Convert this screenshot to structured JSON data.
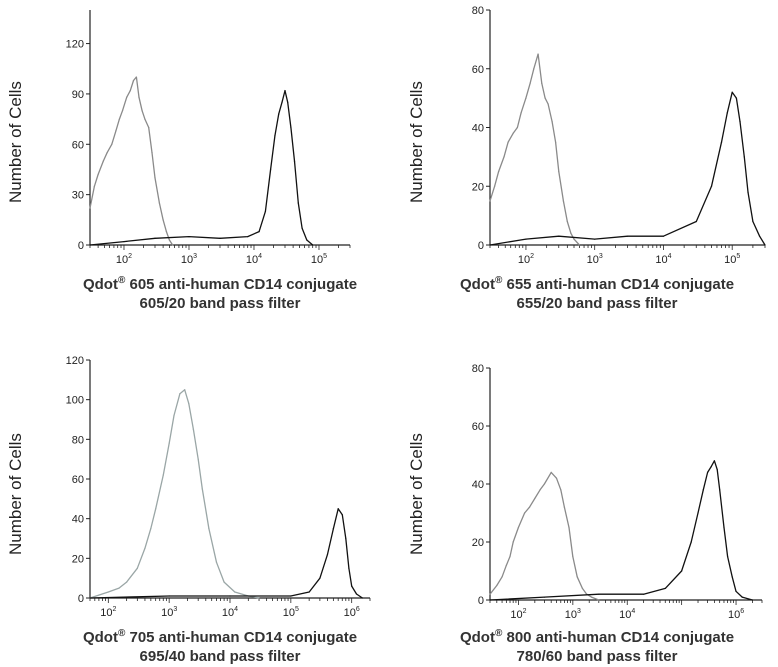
{
  "chart_data": [
    {
      "type": "line",
      "panel": "top-left",
      "ylabel": "Number of Cells",
      "caption_product": "Qdot",
      "caption_reg": "®",
      "caption_rest": " 605 anti-human CD14 conjugate",
      "caption_line2": "605/20 band pass filter",
      "x_scale": "log",
      "xlim": [
        30,
        300000
      ],
      "ylim": [
        0,
        140
      ],
      "yticks": [
        "0",
        "30",
        "60",
        "90",
        "120"
      ],
      "ytick_values": [
        0,
        30,
        60,
        90,
        120
      ],
      "xticks": [
        {
          "base": "10",
          "exp": "2"
        },
        {
          "base": "10",
          "exp": "3"
        },
        {
          "base": "10",
          "exp": "4"
        },
        {
          "base": "10",
          "exp": "5"
        }
      ],
      "xtick_values": [
        100,
        1000,
        10000,
        100000
      ],
      "series": [
        {
          "color": "#8a8a8a",
          "x": [
            30,
            35,
            40,
            48,
            55,
            65,
            75,
            85,
            95,
            110,
            125,
            140,
            155,
            170,
            190,
            210,
            240,
            270,
            300,
            350,
            400,
            450,
            500,
            560
          ],
          "y": [
            22,
            35,
            42,
            50,
            55,
            60,
            68,
            75,
            80,
            88,
            92,
            98,
            100,
            88,
            80,
            75,
            70,
            55,
            40,
            25,
            15,
            8,
            3,
            0
          ]
        },
        {
          "color": "#111111",
          "x": [
            30,
            100,
            300,
            1000,
            3000,
            8000,
            12000,
            15000,
            18000,
            21000,
            24000,
            27000,
            30000,
            33000,
            37000,
            42000,
            48000,
            55000,
            65000,
            80000
          ],
          "y": [
            0,
            2,
            4,
            5,
            4,
            5,
            8,
            20,
            45,
            65,
            78,
            85,
            92,
            85,
            70,
            50,
            25,
            10,
            3,
            0
          ]
        }
      ]
    },
    {
      "type": "line",
      "panel": "top-right",
      "ylabel": "Number of Cells",
      "caption_product": "Qdot",
      "caption_reg": "®",
      "caption_rest": " 655 anti-human CD14 conjugate",
      "caption_line2": "655/20 band pass filter",
      "x_scale": "log",
      "xlim": [
        30,
        300000
      ],
      "ylim": [
        0,
        80
      ],
      "yticks": [
        "0",
        "20",
        "40",
        "60",
        "80"
      ],
      "ytick_values": [
        0,
        20,
        40,
        60,
        80
      ],
      "xticks": [
        {
          "base": "10",
          "exp": "2"
        },
        {
          "base": "10",
          "exp": "3"
        },
        {
          "base": "10",
          "exp": "4"
        },
        {
          "base": "10",
          "exp": "5"
        }
      ],
      "xtick_values": [
        100,
        1000,
        10000,
        100000
      ],
      "series": [
        {
          "color": "#8a8a8a",
          "x": [
            30,
            35,
            40,
            48,
            55,
            65,
            75,
            85,
            100,
            115,
            130,
            150,
            170,
            190,
            210,
            240,
            270,
            300,
            350,
            400,
            450,
            500,
            600
          ],
          "y": [
            15,
            20,
            25,
            30,
            35,
            38,
            40,
            45,
            50,
            55,
            60,
            65,
            55,
            50,
            48,
            42,
            35,
            25,
            15,
            8,
            4,
            2,
            0
          ]
        },
        {
          "color": "#111111",
          "x": [
            30,
            100,
            300,
            1000,
            3000,
            10000,
            30000,
            50000,
            70000,
            85000,
            100000,
            115000,
            130000,
            150000,
            170000,
            200000,
            250000,
            300000
          ],
          "y": [
            0,
            2,
            3,
            2,
            3,
            3,
            8,
            20,
            35,
            45,
            52,
            50,
            42,
            30,
            18,
            8,
            3,
            0
          ]
        }
      ]
    },
    {
      "type": "line",
      "panel": "bottom-left",
      "ylabel": "Number of Cells",
      "caption_product": "Qdot",
      "caption_reg": "®",
      "caption_rest": " 705 anti-human CD14 conjugate",
      "caption_line2": "695/40 band pass filter",
      "x_scale": "log",
      "xlim": [
        50,
        2000000
      ],
      "ylim": [
        0,
        120
      ],
      "yticks": [
        "0",
        "20",
        "40",
        "60",
        "80",
        "100",
        "120"
      ],
      "ytick_values": [
        0,
        20,
        40,
        60,
        80,
        100,
        120
      ],
      "xticks": [
        {
          "base": "10",
          "exp": "2"
        },
        {
          "base": "10",
          "exp": "3"
        },
        {
          "base": "10",
          "exp": "4"
        },
        {
          "base": "10",
          "exp": "5"
        },
        {
          "base": "10",
          "exp": "6"
        }
      ],
      "xtick_values": [
        100,
        1000,
        10000,
        100000,
        1000000
      ],
      "series": [
        {
          "color": "#9aa6a6",
          "x": [
            50,
            100,
            150,
            200,
            300,
            400,
            500,
            600,
            800,
            1000,
            1200,
            1500,
            1800,
            2100,
            2500,
            3000,
            3500,
            4500,
            6000,
            8000,
            12000,
            20000,
            30000
          ],
          "y": [
            0,
            3,
            5,
            8,
            15,
            25,
            35,
            45,
            62,
            78,
            92,
            103,
            105,
            98,
            85,
            70,
            55,
            35,
            18,
            8,
            3,
            1,
            0
          ]
        },
        {
          "color": "#111111",
          "x": [
            50,
            1000,
            10000,
            100000,
            200000,
            300000,
            400000,
            500000,
            600000,
            700000,
            800000,
            900000,
            1000000,
            1200000,
            1500000
          ],
          "y": [
            0,
            1,
            1,
            1,
            3,
            10,
            22,
            35,
            45,
            42,
            30,
            15,
            6,
            2,
            0
          ]
        }
      ]
    },
    {
      "type": "line",
      "panel": "bottom-right",
      "ylabel": "Number of Cells",
      "caption_product": "Qdot",
      "caption_reg": "®",
      "caption_rest": " 800 anti-human CD14 conjugate",
      "caption_line2": "780/60 band pass filter",
      "x_scale": "log",
      "xlim": [
        30,
        3000000
      ],
      "ylim": [
        0,
        80
      ],
      "yticks": [
        "0",
        "20",
        "40",
        "60",
        "80"
      ],
      "ytick_values": [
        0,
        20,
        40,
        60,
        80
      ],
      "xticks": [
        {
          "base": "10",
          "exp": "2"
        },
        {
          "base": "10",
          "exp": "3"
        },
        {
          "base": "10",
          "exp": "4"
        },
        {
          "base": "10",
          "exp": "6"
        }
      ],
      "xtick_values": [
        100,
        1000,
        10000,
        1000000
      ],
      "series": [
        {
          "color": "#8a8a8a",
          "x": [
            30,
            40,
            50,
            60,
            70,
            80,
            100,
            130,
            160,
            200,
            250,
            300,
            400,
            500,
            600,
            700,
            850,
            1000,
            1200,
            1500,
            1800,
            2200,
            3000
          ],
          "y": [
            2,
            5,
            8,
            12,
            15,
            20,
            25,
            30,
            32,
            35,
            38,
            40,
            44,
            42,
            38,
            32,
            25,
            15,
            8,
            4,
            2,
            1,
            0
          ]
        },
        {
          "color": "#111111",
          "x": [
            30,
            300,
            3000,
            20000,
            50000,
            100000,
            150000,
            200000,
            250000,
            300000,
            350000,
            400000,
            450000,
            500000,
            600000,
            700000,
            850000,
            1000000,
            1300000,
            2000000
          ],
          "y": [
            0,
            1,
            2,
            2,
            4,
            10,
            20,
            30,
            38,
            44,
            46,
            48,
            45,
            38,
            25,
            15,
            8,
            3,
            1,
            0
          ]
        }
      ]
    }
  ]
}
